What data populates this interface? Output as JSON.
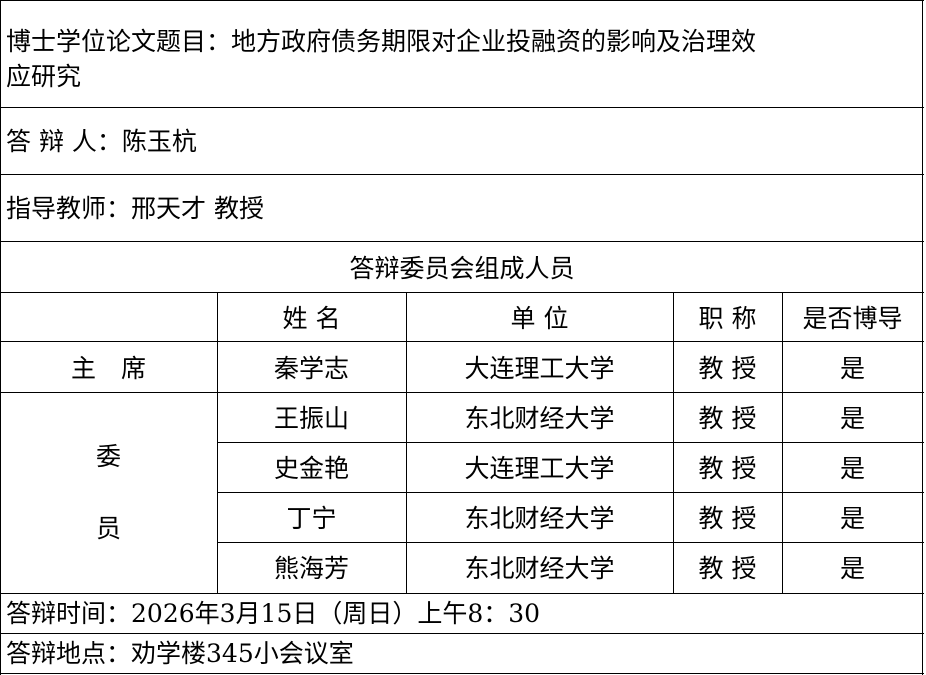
{
  "thesis_title": {
    "label": "博士学位论文题目：",
    "line1": "地方政府债务期限对企业投融资的影响及治理效",
    "line2": "应研究"
  },
  "candidate": {
    "label": "答 辩 人：",
    "value": "陈玉杭"
  },
  "advisor": {
    "label": "指导教师：",
    "value": "邢天才 教授"
  },
  "committee": {
    "heading": "答辩委员会组成人员",
    "columns": [
      "姓 名",
      "单 位",
      "职 称",
      "是否博导"
    ],
    "chair_label": "主　席",
    "member_label_1": "委",
    "member_label_2": "员",
    "rows": [
      {
        "name": "秦学志",
        "unit": "大连理工大学",
        "title": "教 授",
        "phd": "是"
      },
      {
        "name": "王振山",
        "unit": "东北财经大学",
        "title": "教 授",
        "phd": "是"
      },
      {
        "name": "史金艳",
        "unit": "大连理工大学",
        "title": "教 授",
        "phd": "是"
      },
      {
        "name": "丁宁",
        "unit": "东北财经大学",
        "title": "教 授",
        "phd": "是"
      },
      {
        "name": "熊海芳",
        "unit": "东北财经大学",
        "title": "教 授",
        "phd": "是"
      }
    ]
  },
  "defense_time": {
    "label": "答辩时间：",
    "value": "2026年3月15日（周日）上午8：30"
  },
  "defense_place": {
    "label": "答辩地点：",
    "value": "劝学楼345小会议室"
  }
}
